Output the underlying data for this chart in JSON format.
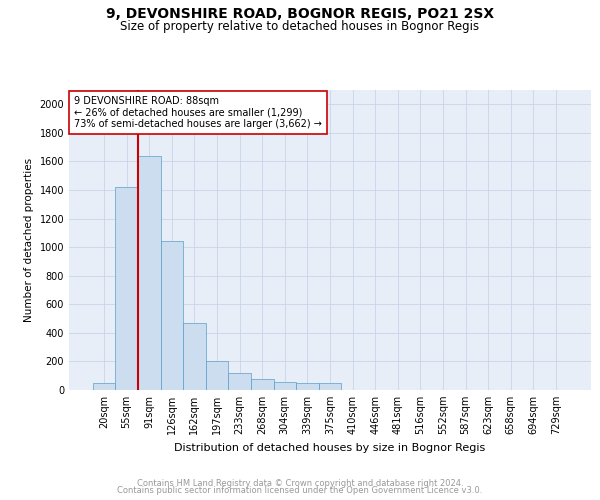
{
  "title1": "9, DEVONSHIRE ROAD, BOGNOR REGIS, PO21 2SX",
  "title2": "Size of property relative to detached houses in Bognor Regis",
  "xlabel": "Distribution of detached houses by size in Bognor Regis",
  "ylabel": "Number of detached properties",
  "categories": [
    "20sqm",
    "55sqm",
    "91sqm",
    "126sqm",
    "162sqm",
    "197sqm",
    "233sqm",
    "268sqm",
    "304sqm",
    "339sqm",
    "375sqm",
    "410sqm",
    "446sqm",
    "481sqm",
    "516sqm",
    "552sqm",
    "587sqm",
    "623sqm",
    "658sqm",
    "694sqm",
    "729sqm"
  ],
  "values": [
    50,
    1420,
    1640,
    1040,
    470,
    200,
    120,
    75,
    55,
    52,
    50,
    0,
    0,
    0,
    0,
    0,
    0,
    0,
    0,
    0,
    0
  ],
  "bar_color": "#ccddf0",
  "bar_edge_color": "#5b9ec9",
  "vline_color": "#cc0000",
  "vline_position": 1.5,
  "annotation_text": "9 DEVONSHIRE ROAD: 88sqm\n← 26% of detached houses are smaller (1,299)\n73% of semi-detached houses are larger (3,662) →",
  "annotation_box_color": "#ffffff",
  "annotation_box_edge_color": "#cc0000",
  "ylim": [
    0,
    2100
  ],
  "yticks": [
    0,
    200,
    400,
    600,
    800,
    1000,
    1200,
    1400,
    1600,
    1800,
    2000
  ],
  "grid_color": "#c8d4e8",
  "background_color": "#e8eef8",
  "footer1": "Contains HM Land Registry data © Crown copyright and database right 2024.",
  "footer2": "Contains public sector information licensed under the Open Government Licence v3.0.",
  "title1_fontsize": 10,
  "title2_fontsize": 8.5,
  "xlabel_fontsize": 8,
  "ylabel_fontsize": 7.5,
  "tick_fontsize": 7,
  "annotation_fontsize": 7,
  "footer_fontsize": 6
}
